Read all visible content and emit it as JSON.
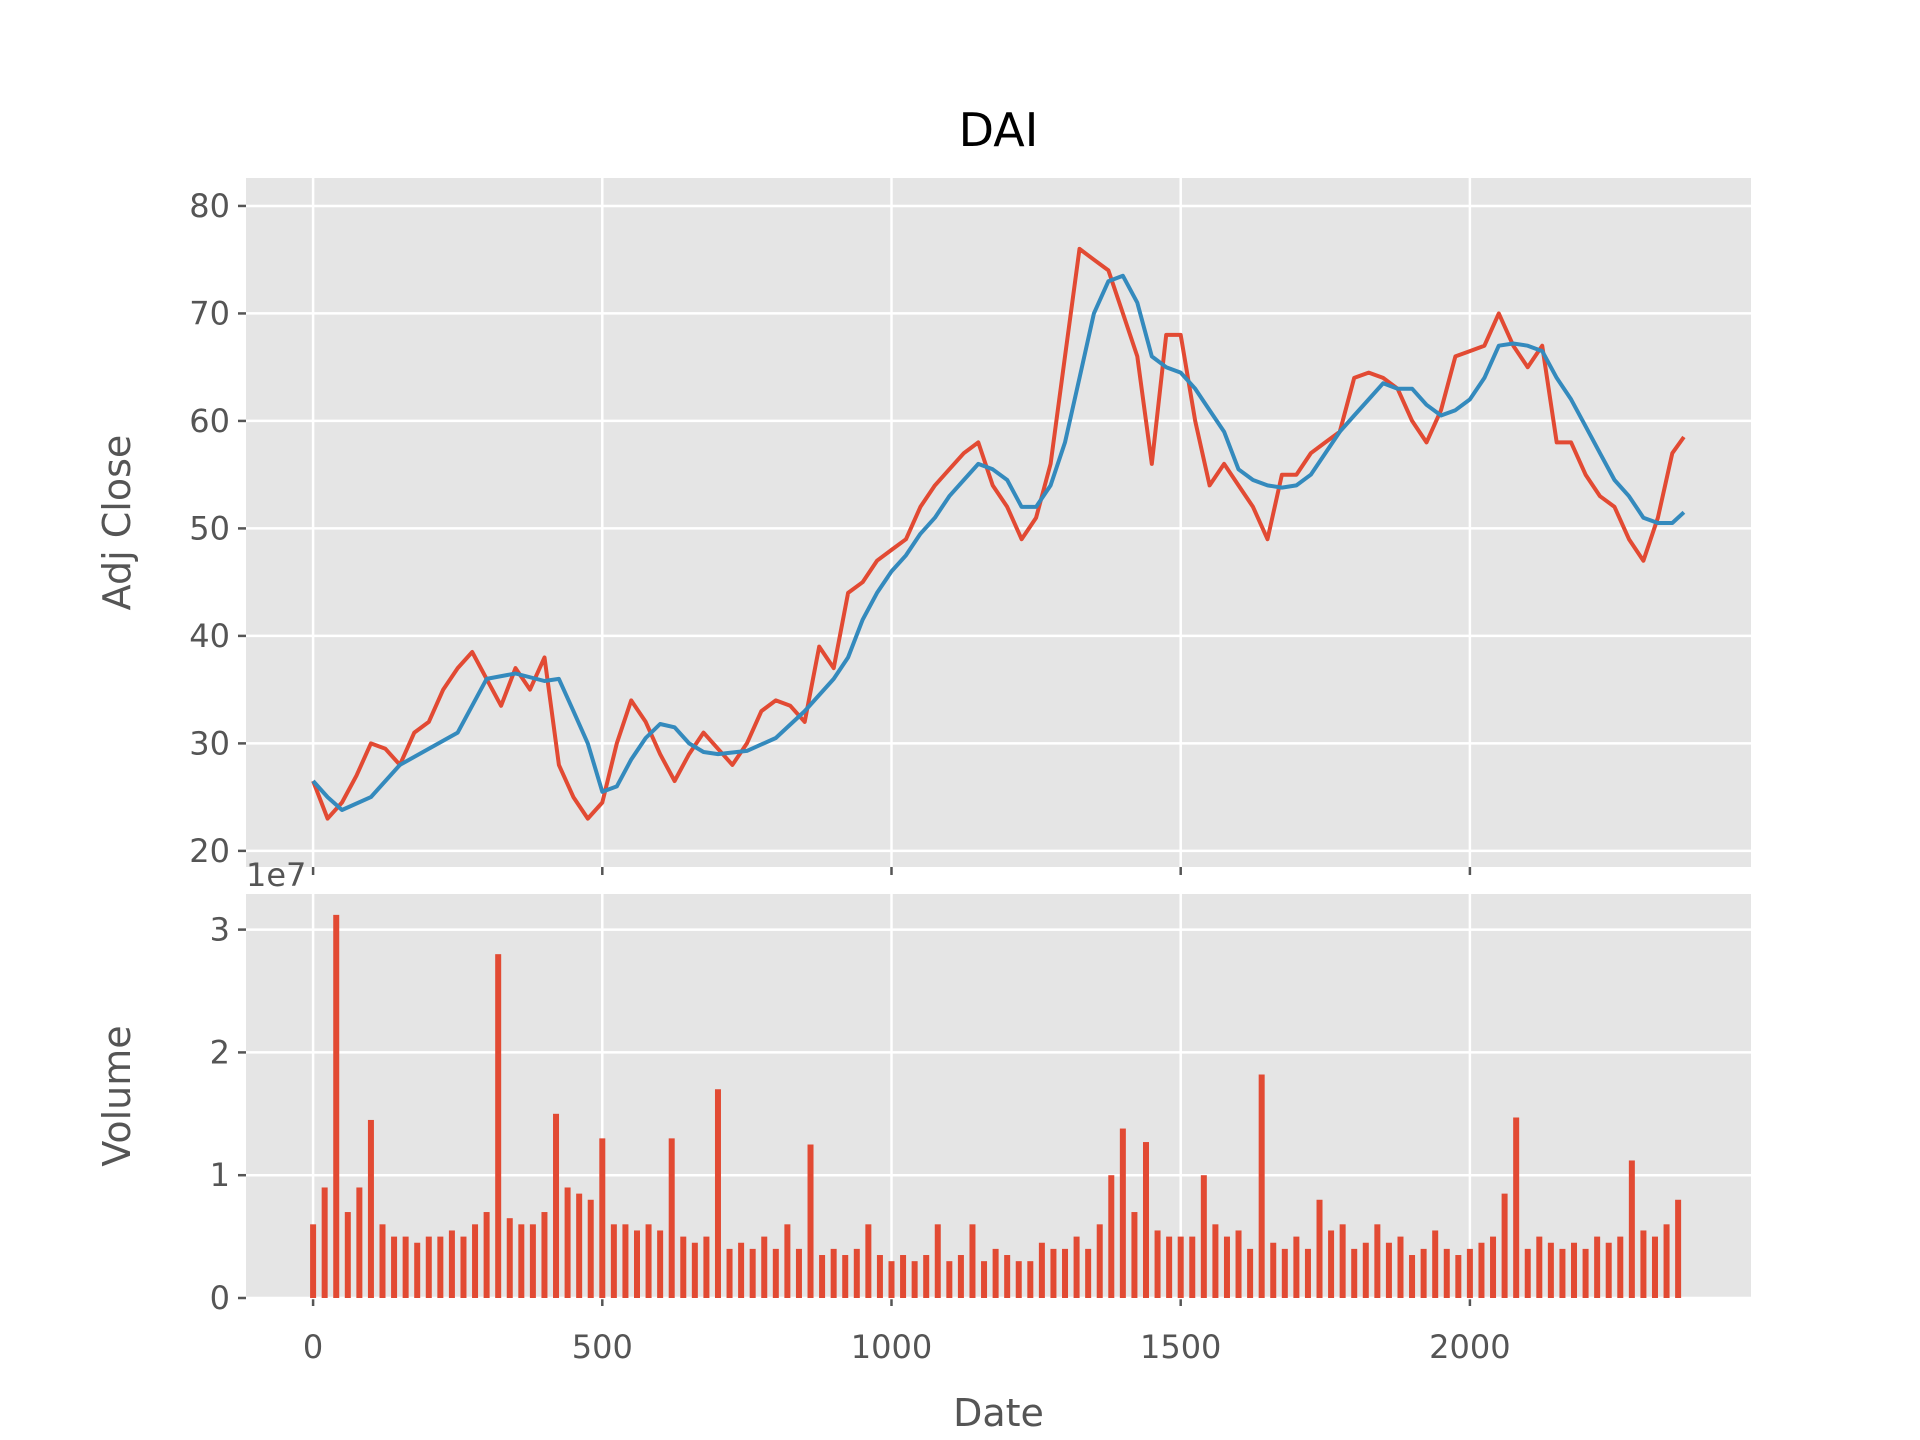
{
  "chart_data": [
    {
      "type": "line",
      "title": "DAI",
      "y_label": "Adj Close",
      "xlim": [
        -116,
        2486
      ],
      "xticks": [
        0,
        500,
        1000,
        1500,
        2000
      ],
      "ylim": [
        18.5,
        82.6
      ],
      "yticks": [
        20,
        30,
        40,
        50,
        60,
        70,
        80
      ],
      "grid": true,
      "series": [
        {
          "color": "#e24a33",
          "x": [
            0,
            25,
            50,
            75,
            100,
            125,
            150,
            175,
            200,
            225,
            250,
            275,
            300,
            325,
            350,
            375,
            400,
            425,
            450,
            475,
            500,
            525,
            550,
            575,
            600,
            625,
            650,
            675,
            700,
            725,
            750,
            775,
            800,
            825,
            850,
            875,
            900,
            925,
            950,
            975,
            1000,
            1025,
            1050,
            1075,
            1100,
            1125,
            1150,
            1175,
            1200,
            1225,
            1250,
            1275,
            1300,
            1325,
            1350,
            1375,
            1400,
            1425,
            1450,
            1475,
            1500,
            1525,
            1550,
            1575,
            1600,
            1625,
            1650,
            1675,
            1700,
            1725,
            1750,
            1775,
            1800,
            1825,
            1850,
            1875,
            1900,
            1925,
            1950,
            1975,
            2000,
            2025,
            2050,
            2075,
            2100,
            2125,
            2150,
            2175,
            2200,
            2225,
            2250,
            2275,
            2300,
            2325,
            2350,
            2370
          ],
          "values": [
            26.5,
            23,
            24.5,
            27,
            30,
            29.5,
            28,
            31,
            32,
            35,
            37,
            38.5,
            36,
            33.5,
            37,
            35,
            38,
            28,
            25,
            23,
            24.5,
            30,
            34,
            32,
            29,
            26.5,
            29,
            31,
            29.5,
            28,
            30,
            33,
            34,
            33.5,
            32,
            39,
            37,
            44,
            45,
            47,
            48,
            49,
            52,
            54,
            55.5,
            57,
            58,
            54,
            52,
            49,
            51,
            56,
            66,
            76,
            75,
            74,
            70,
            66,
            56,
            68,
            68,
            60,
            54,
            56,
            54,
            52,
            49,
            55,
            55,
            57,
            58,
            59,
            64,
            64.5,
            64,
            63,
            60,
            58,
            61,
            66,
            66.5,
            67,
            70,
            67,
            65,
            67,
            58,
            58,
            55,
            53,
            52,
            49,
            47,
            51,
            57,
            58.5
          ]
        },
        {
          "color": "#348abd",
          "x": [
            0,
            25,
            50,
            100,
            150,
            200,
            250,
            300,
            350,
            400,
            425,
            450,
            475,
            500,
            525,
            550,
            575,
            600,
            625,
            650,
            675,
            700,
            750,
            800,
            850,
            900,
            925,
            950,
            975,
            1000,
            1025,
            1050,
            1075,
            1100,
            1125,
            1150,
            1175,
            1200,
            1225,
            1250,
            1275,
            1300,
            1325,
            1350,
            1375,
            1400,
            1425,
            1450,
            1475,
            1500,
            1525,
            1550,
            1575,
            1600,
            1625,
            1650,
            1675,
            1700,
            1725,
            1750,
            1775,
            1800,
            1825,
            1850,
            1875,
            1900,
            1925,
            1950,
            1975,
            2000,
            2025,
            2050,
            2075,
            2100,
            2125,
            2150,
            2175,
            2200,
            2225,
            2250,
            2275,
            2300,
            2325,
            2350,
            2370
          ],
          "values": [
            26.5,
            25,
            23.8,
            25,
            28,
            29.5,
            31,
            36,
            36.5,
            35.8,
            36,
            33,
            30,
            25.5,
            26,
            28.5,
            30.5,
            31.8,
            31.5,
            30,
            29.2,
            29,
            29.3,
            30.5,
            33,
            36,
            38,
            41.5,
            44,
            46,
            47.5,
            49.5,
            51,
            53,
            54.5,
            56,
            55.5,
            54.5,
            52,
            52,
            54,
            58,
            64,
            70,
            73,
            73.5,
            71,
            66,
            65,
            64.5,
            63,
            61,
            59,
            55.5,
            54.5,
            54,
            53.8,
            54,
            55,
            57,
            59,
            60.5,
            62,
            63.5,
            63,
            63,
            61.5,
            60.5,
            61,
            62,
            64,
            67,
            67.2,
            67,
            66.5,
            64,
            62,
            59.5,
            57,
            54.5,
            53,
            51,
            50.5,
            50.5,
            51.5
          ]
        }
      ]
    },
    {
      "type": "bar",
      "y_label": "Volume",
      "x_label": "Date",
      "offset_label": "1e7",
      "xlim": [
        -116,
        2486
      ],
      "xticks": [
        0,
        500,
        1000,
        1500,
        2000
      ],
      "ylim": [
        0,
        3.29
      ],
      "yticks": [
        0,
        1,
        2,
        3
      ],
      "grid": true,
      "color": "#e24a33",
      "x": [
        0,
        20,
        40,
        60,
        80,
        100,
        120,
        140,
        160,
        180,
        200,
        220,
        240,
        260,
        280,
        300,
        320,
        340,
        360,
        380,
        400,
        420,
        440,
        460,
        480,
        500,
        520,
        540,
        560,
        580,
        600,
        620,
        640,
        660,
        680,
        700,
        720,
        740,
        760,
        780,
        800,
        820,
        840,
        860,
        880,
        900,
        920,
        940,
        960,
        980,
        1000,
        1020,
        1040,
        1060,
        1080,
        1100,
        1120,
        1140,
        1160,
        1180,
        1200,
        1220,
        1240,
        1260,
        1280,
        1300,
        1320,
        1340,
        1360,
        1380,
        1400,
        1420,
        1440,
        1460,
        1480,
        1500,
        1520,
        1540,
        1560,
        1580,
        1600,
        1620,
        1640,
        1660,
        1680,
        1700,
        1720,
        1740,
        1760,
        1780,
        1800,
        1820,
        1840,
        1860,
        1880,
        1900,
        1920,
        1940,
        1960,
        1980,
        2000,
        2020,
        2040,
        2060,
        2080,
        2100,
        2120,
        2140,
        2160,
        2180,
        2200,
        2220,
        2240,
        2260,
        2280,
        2300,
        2320,
        2340,
        2360
      ],
      "values": [
        0.6,
        0.9,
        3.12,
        0.7,
        0.9,
        1.45,
        0.6,
        0.5,
        0.5,
        0.45,
        0.5,
        0.5,
        0.55,
        0.5,
        0.6,
        0.7,
        2.8,
        0.65,
        0.6,
        0.6,
        0.7,
        1.5,
        0.9,
        0.85,
        0.8,
        1.3,
        0.6,
        0.6,
        0.55,
        0.6,
        0.55,
        1.3,
        0.5,
        0.45,
        0.5,
        1.7,
        0.4,
        0.45,
        0.4,
        0.5,
        0.4,
        0.6,
        0.4,
        1.25,
        0.35,
        0.4,
        0.35,
        0.4,
        0.6,
        0.35,
        0.3,
        0.35,
        0.3,
        0.35,
        0.6,
        0.3,
        0.35,
        0.6,
        0.3,
        0.4,
        0.35,
        0.3,
        0.3,
        0.45,
        0.4,
        0.4,
        0.5,
        0.4,
        0.6,
        1.0,
        1.38,
        0.7,
        1.27,
        0.55,
        0.5,
        0.5,
        0.5,
        1.0,
        0.6,
        0.5,
        0.55,
        0.4,
        1.82,
        0.45,
        0.4,
        0.5,
        0.4,
        0.8,
        0.55,
        0.6,
        0.4,
        0.45,
        0.6,
        0.45,
        0.5,
        0.35,
        0.4,
        0.55,
        0.4,
        0.35,
        0.4,
        0.45,
        0.5,
        0.85,
        1.47,
        0.4,
        0.5,
        0.45,
        0.4,
        0.45,
        0.4,
        0.5,
        0.45,
        0.5,
        1.12,
        0.55,
        0.5,
        0.6,
        0.8
      ]
    }
  ]
}
